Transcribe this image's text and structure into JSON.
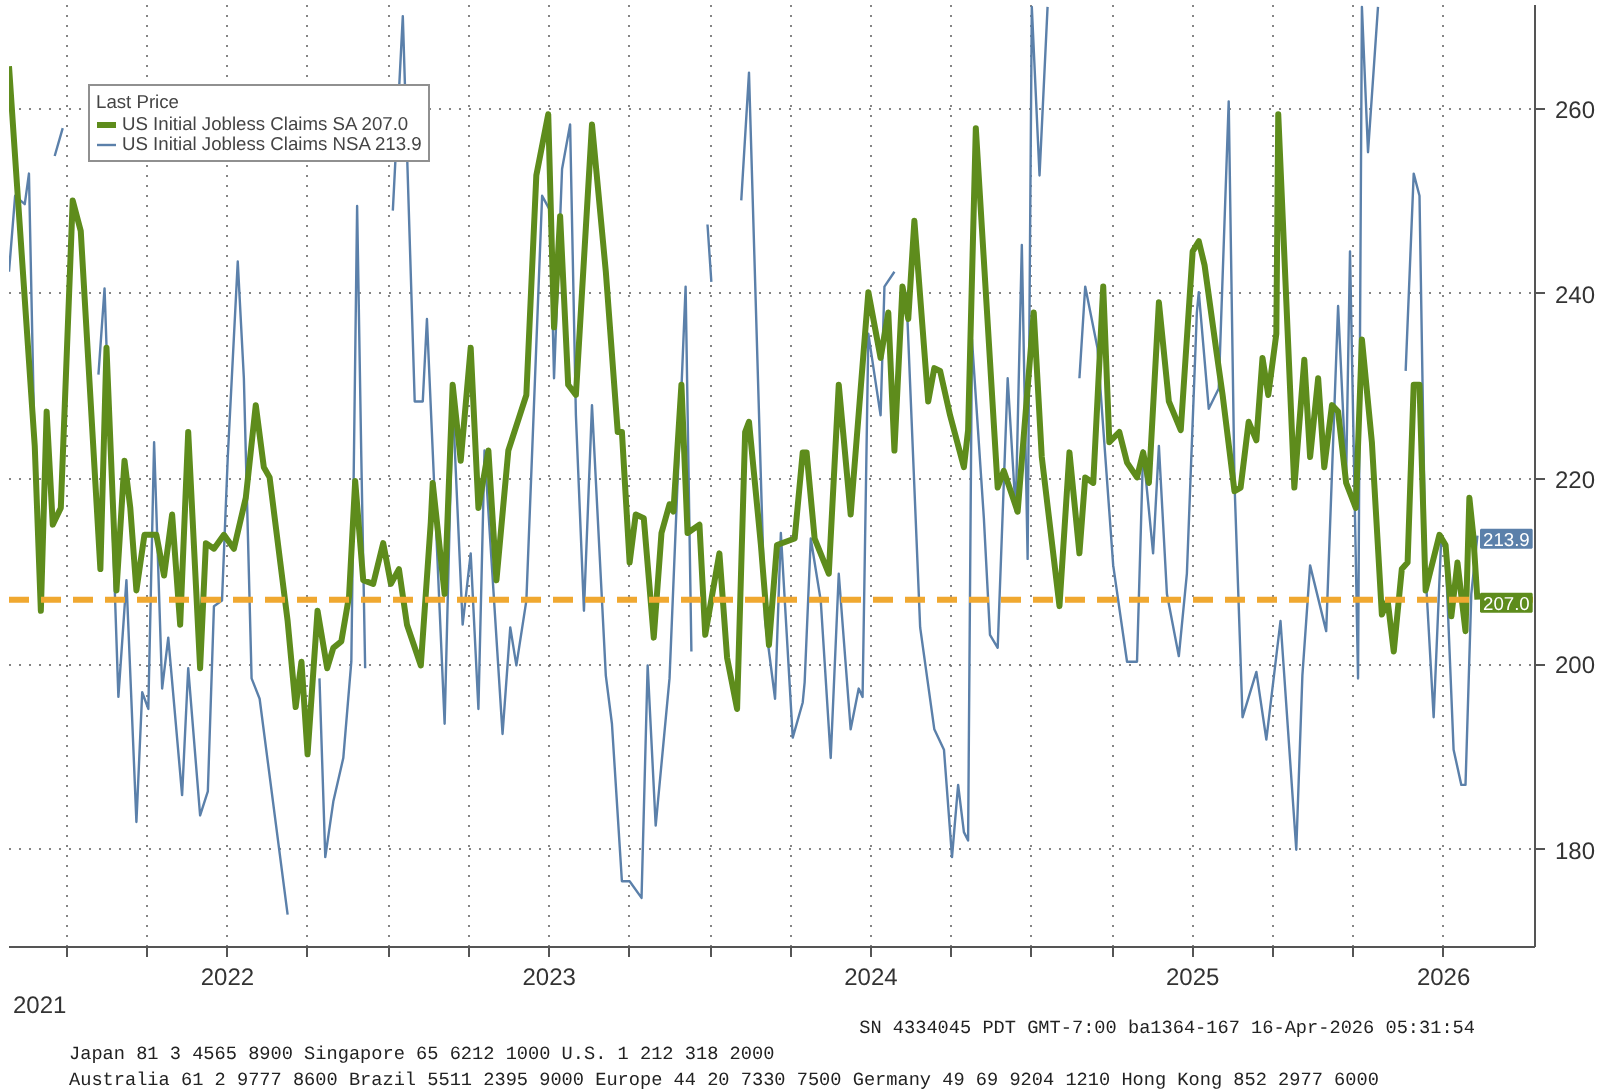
{
  "chart_data": {
    "type": "line",
    "legend_title": "Last Price",
    "xlim": [
      2021.821,
      2026.564
    ],
    "xticks": [
      {
        "value": 2022.0,
        "label": null
      },
      {
        "value": 2022.25,
        "label": null
      },
      {
        "value": 2022.5,
        "label": "2022"
      },
      {
        "value": 2022.75,
        "label": null
      },
      {
        "value": 2023.0,
        "label": null
      },
      {
        "value": 2023.25,
        "label": null
      },
      {
        "value": 2023.5,
        "label": "2023"
      },
      {
        "value": 2023.75,
        "label": null
      },
      {
        "value": 2024.0,
        "label": null
      },
      {
        "value": 2024.25,
        "label": null
      },
      {
        "value": 2024.5,
        "label": "2024"
      },
      {
        "value": 2024.75,
        "label": null
      },
      {
        "value": 2025.0,
        "label": null
      },
      {
        "value": 2025.25,
        "label": null
      },
      {
        "value": 2025.5,
        "label": "2025"
      },
      {
        "value": 2025.75,
        "label": null
      },
      {
        "value": 2026.0,
        "label": null
      },
      {
        "value": 2026.28,
        "label": "2026"
      }
    ],
    "ylim": [
      169.5,
      271.2
    ],
    "yticks": [
      180,
      200,
      220,
      240,
      260
    ],
    "grid": true,
    "legend": "top left",
    "ref_lines": [
      {
        "axis": "y",
        "value": 207,
        "color": "#f0a830",
        "line_style": "dashed"
      }
    ],
    "annotations": [
      {
        "text": "213.9",
        "y": 213.9
      },
      {
        "text": "207.0",
        "y": 207.0
      },
      "2021",
      "Australia 61 2 9777 8600 Brazil 5511 2395 9000 Europe 44 20 7330 7500 Germany 49 69 9204 1210 Hong Kong 852 2977 6000",
      "Japan 81 3 4565 8900 Singapore 65 6212 1000 U.S. 1 212 318 2000",
      "SN 4334045 PDT GMT-7:00 ba1364-167 16-Apr-2026 05:31:54"
    ],
    "series": [
      {
        "name": "US Initial Jobless Claims NSA 213.9",
        "color": "#5b80aa",
        "x": [
          2021.821,
          2021.84,
          2021.87,
          2021.883,
          2021.901,
          2021.914,
          2021.94,
          2021.958,
          2021.963,
          2021.988,
          2022.0,
          2022.025,
          2022.05,
          2022.099,
          2022.118,
          2022.161,
          2022.186,
          2022.217,
          2022.235,
          2022.254,
          2022.272,
          2022.297,
          2022.316,
          2022.359,
          2022.378,
          2022.415,
          2022.439,
          2022.458,
          2022.483,
          2022.501,
          2022.532,
          2022.551,
          2022.575,
          2022.6,
          2022.687,
          2022.699,
          2022.73,
          2022.767,
          2022.786,
          2022.804,
          2022.829,
          2022.86,
          2022.885,
          2022.903,
          2022.916,
          2022.928,
          2022.946,
          2022.965,
          2022.984,
          2023.014,
          2023.045,
          2023.082,
          2023.107,
          2023.12,
          2023.175,
          2023.2,
          2023.231,
          2023.256,
          2023.28,
          2023.299,
          2023.355,
          2023.379,
          2023.398,
          2023.429,
          2023.478,
          2023.503,
          2023.515,
          2023.54,
          2023.565,
          2023.583,
          2023.608,
          2023.633,
          2023.676,
          2023.695,
          2023.726,
          2023.75,
          2023.787,
          2023.806,
          2023.831,
          2023.874,
          2023.924,
          2023.942,
          2023.967,
          2023.98,
          2023.992,
          2024.004,
          2024.035,
          2024.047,
          2024.066,
          2024.097,
          2024.121,
          2024.171,
          2024.202,
          2024.22,
          2024.257,
          2024.288,
          2024.294,
          2024.313,
          2024.344,
          2024.375,
          2024.4,
          2024.437,
          2024.462,
          2024.474,
          2024.492,
          2024.53,
          2024.542,
          2024.573,
          2024.591,
          2024.6,
          2024.61,
          2024.653,
          2024.697,
          2024.727,
          2024.752,
          2024.771,
          2024.789,
          2024.802,
          2024.814,
          2024.851,
          2024.87,
          2024.894,
          2024.925,
          2024.95,
          2024.969,
          2024.987,
          2025.0,
          2025.024,
          2025.049,
          2025.09,
          2025.129,
          2025.148,
          2025.166,
          2025.204,
          2025.253,
          2025.296,
          2025.327,
          2025.346,
          2025.377,
          2025.395,
          2025.42,
          2025.457,
          2025.482,
          2025.513,
          2025.519,
          2025.55,
          2025.581,
          2025.612,
          2025.63,
          2025.655,
          2025.698,
          2025.729,
          2025.773,
          2025.822,
          2025.841,
          2025.865,
          2025.915,
          2025.952,
          2025.977,
          2025.989,
          2026.014,
          2026.026,
          2026.045,
          2026.076,
          2026.11,
          2026.137,
          2026.162,
          2026.187,
          2026.205,
          2026.224,
          2026.249,
          2026.273,
          2026.286,
          2026.311,
          2026.335,
          2026.348,
          2026.366,
          2026.385
        ],
        "values": [
          242.4,
          250.6,
          249.7,
          253,
          222.4,
          null,
          null,
          null,
          254.9,
          257.9,
          null,
          null,
          null,
          231.3,
          240.6,
          196.5,
          209.1,
          183,
          197,
          195.2,
          224,
          197.4,
          202.9,
          185.9,
          199.6,
          183.7,
          186.3,
          206.3,
          206.9,
          222.4,
          243.5,
          230.9,
          198.5,
          196.3,
          173,
          null,
          null,
          null,
          198.5,
          179.2,
          185.2,
          189.9,
          200.3,
          249.5,
          222.4,
          199.6,
          null,
          null,
          null,
          249,
          270,
          228.4,
          228.4,
          237.3,
          193.6,
          228.4,
          204.3,
          212,
          195.2,
          223.1,
          192.5,
          204,
          199.9,
          206.9,
          250.6,
          249,
          230.9,
          253.5,
          258.3,
          226.9,
          205.8,
          228,
          198.8,
          193.6,
          176.6,
          176.6,
          174.8,
          199.9,
          182.6,
          198.5,
          240.8,
          201.4,
          null,
          null,
          247.5,
          241.3,
          null,
          null,
          null,
          250.1,
          263.9,
          204.7,
          196.3,
          214.2,
          192.1,
          195.9,
          198.1,
          213.6,
          206.9,
          189.9,
          209.8,
          193,
          197.4,
          196.5,
          235.7,
          226.9,
          240.8,
          242.4,
          null,
          null,
          240.2,
          204,
          193,
          190.8,
          179.2,
          187,
          181.9,
          181,
          235.1,
          215.8,
          203.2,
          201.8,
          230.9,
          216.5,
          245.3,
          211.4,
          271,
          252.8,
          271,
          null,
          null,
          230.9,
          240.8,
          234.2,
          210.7,
          200.3,
          200.3,
          223.1,
          212,
          223.6,
          207.6,
          200.9,
          209.8,
          238,
          240.2,
          227.6,
          229.8,
          260.8,
          219.6,
          194.3,
          199.2,
          191.9,
          204.7,
          180,
          198.8,
          210.7,
          203.6,
          238.7,
          220.2,
          244.6,
          198.5,
          271,
          255.3,
          271,
          null,
          null,
          231.7,
          253,
          250.6,
          209.8,
          194.3,
          214,
          212,
          190.8,
          187,
          187,
          207.6,
          213.9
        ]
      },
      {
        "name": "US Initial Jobless Claims SA 207.0",
        "color": "#5e8c1c",
        "x": [
          2021.821,
          2021.846,
          2021.901,
          2021.92,
          2021.938,
          2021.957,
          2021.982,
          2022.019,
          2022.044,
          2022.105,
          2022.124,
          2022.155,
          2022.18,
          2022.198,
          2022.217,
          2022.242,
          2022.279,
          2022.303,
          2022.328,
          2022.353,
          2022.378,
          2022.415,
          2022.433,
          2022.458,
          2022.489,
          2022.52,
          2022.557,
          2022.588,
          2022.613,
          2022.631,
          2022.687,
          2022.712,
          2022.73,
          2022.749,
          2022.78,
          2022.81,
          2022.829,
          2022.854,
          2022.878,
          2022.897,
          2022.922,
          2022.953,
          2022.984,
          2023.008,
          2023.033,
          2023.058,
          2023.101,
          2023.132,
          2023.138,
          2023.175,
          2023.2,
          2023.225,
          2023.256,
          2023.28,
          2023.311,
          2023.336,
          2023.373,
          2023.429,
          2023.46,
          2023.497,
          2023.515,
          2023.534,
          2023.559,
          2023.583,
          2023.633,
          2023.676,
          2023.713,
          2023.726,
          2023.75,
          2023.769,
          2023.794,
          2023.825,
          2023.849,
          2023.874,
          2023.886,
          2023.911,
          2023.93,
          2023.967,
          2023.985,
          2024.029,
          2024.053,
          2024.084,
          2024.109,
          2024.121,
          2024.158,
          2024.183,
          2024.208,
          2024.263,
          2024.288,
          2024.3,
          2024.325,
          2024.369,
          2024.4,
          2024.437,
          2024.492,
          2024.53,
          2024.554,
          2024.573,
          2024.598,
          2024.616,
          2024.635,
          2024.678,
          2024.697,
          2024.715,
          2024.746,
          2024.789,
          2024.802,
          2024.826,
          2024.894,
          2024.913,
          2024.956,
          2025.006,
          2025.031,
          2025.086,
          2025.117,
          2025.148,
          2025.166,
          2025.191,
          2025.222,
          2025.241,
          2025.272,
          2025.296,
          2025.327,
          2025.346,
          2025.364,
          2025.395,
          2025.426,
          2025.463,
          2025.5,
          2025.519,
          2025.537,
          2025.575,
          2025.593,
          2025.63,
          2025.649,
          2025.674,
          2025.698,
          2025.717,
          2025.735,
          2025.76,
          2025.766,
          2025.816,
          2025.847,
          2025.865,
          2025.89,
          2025.909,
          2025.933,
          2025.952,
          2025.977,
          2026.007,
          2026.026,
          2026.057,
          2026.088,
          2026.106,
          2026.125,
          2026.15,
          2026.168,
          2026.187,
          2026.205,
          2026.224,
          2026.267,
          2026.286,
          2026.304,
          2026.323,
          2026.348,
          2026.36,
          2026.372,
          2026.385
        ],
        "values": [
          264.6,
          251.7,
          223.6,
          205.8,
          227.3,
          215.1,
          216.9,
          250.1,
          246.8,
          210.3,
          234.2,
          208,
          222,
          216.9,
          208,
          214,
          214,
          209.6,
          216.2,
          204.3,
          225.1,
          199.6,
          213.1,
          212.5,
          214,
          212.5,
          218,
          228,
          221.3,
          220.2,
          204.7,
          195.4,
          200.3,
          190.3,
          205.8,
          199.6,
          201.8,
          202.5,
          207.4,
          219.8,
          209.1,
          208.7,
          213.1,
          208.7,
          210.3,
          204.3,
          199.9,
          215.4,
          219.6,
          207.6,
          230.2,
          222,
          234.2,
          216.9,
          223.1,
          209.1,
          223.1,
          229.1,
          252.8,
          259.4,
          236.4,
          248.4,
          230.2,
          229.1,
          258.3,
          242.4,
          225.1,
          225.1,
          211,
          216.2,
          215.8,
          202.9,
          214.2,
          217.3,
          216.5,
          230.2,
          214.2,
          215.1,
          203.2,
          212,
          200.7,
          195.2,
          225.1,
          226.2,
          212.9,
          202.1,
          212.9,
          213.6,
          222.9,
          222.9,
          213.6,
          209.8,
          230.2,
          216.2,
          240.2,
          233.1,
          238,
          223.1,
          240.8,
          237.3,
          247.9,
          228.4,
          232,
          231.7,
          226.9,
          221.3,
          225.3,
          257.9,
          219.1,
          220.9,
          216.5,
          238,
          222.4,
          206.3,
          222.9,
          212,
          220.2,
          219.6,
          240.8,
          224,
          225.1,
          221.8,
          220.2,
          222.9,
          219.6,
          239.1,
          228.4,
          225.3,
          244.6,
          245.7,
          243.1,
          233.5,
          229.1,
          218.7,
          219.1,
          226.2,
          224.2,
          233.1,
          229.1,
          235.7,
          259.4,
          219.1,
          232.9,
          222.4,
          230.9,
          221.3,
          228,
          227.3,
          219.6,
          216.9,
          235.1,
          224,
          205.4,
          206.9,
          201.4,
          210.3,
          211,
          230.2,
          230.2,
          208,
          214,
          212.9,
          205.2,
          211,
          203.6,
          218,
          214,
          207.0
        ]
      }
    ]
  }
}
